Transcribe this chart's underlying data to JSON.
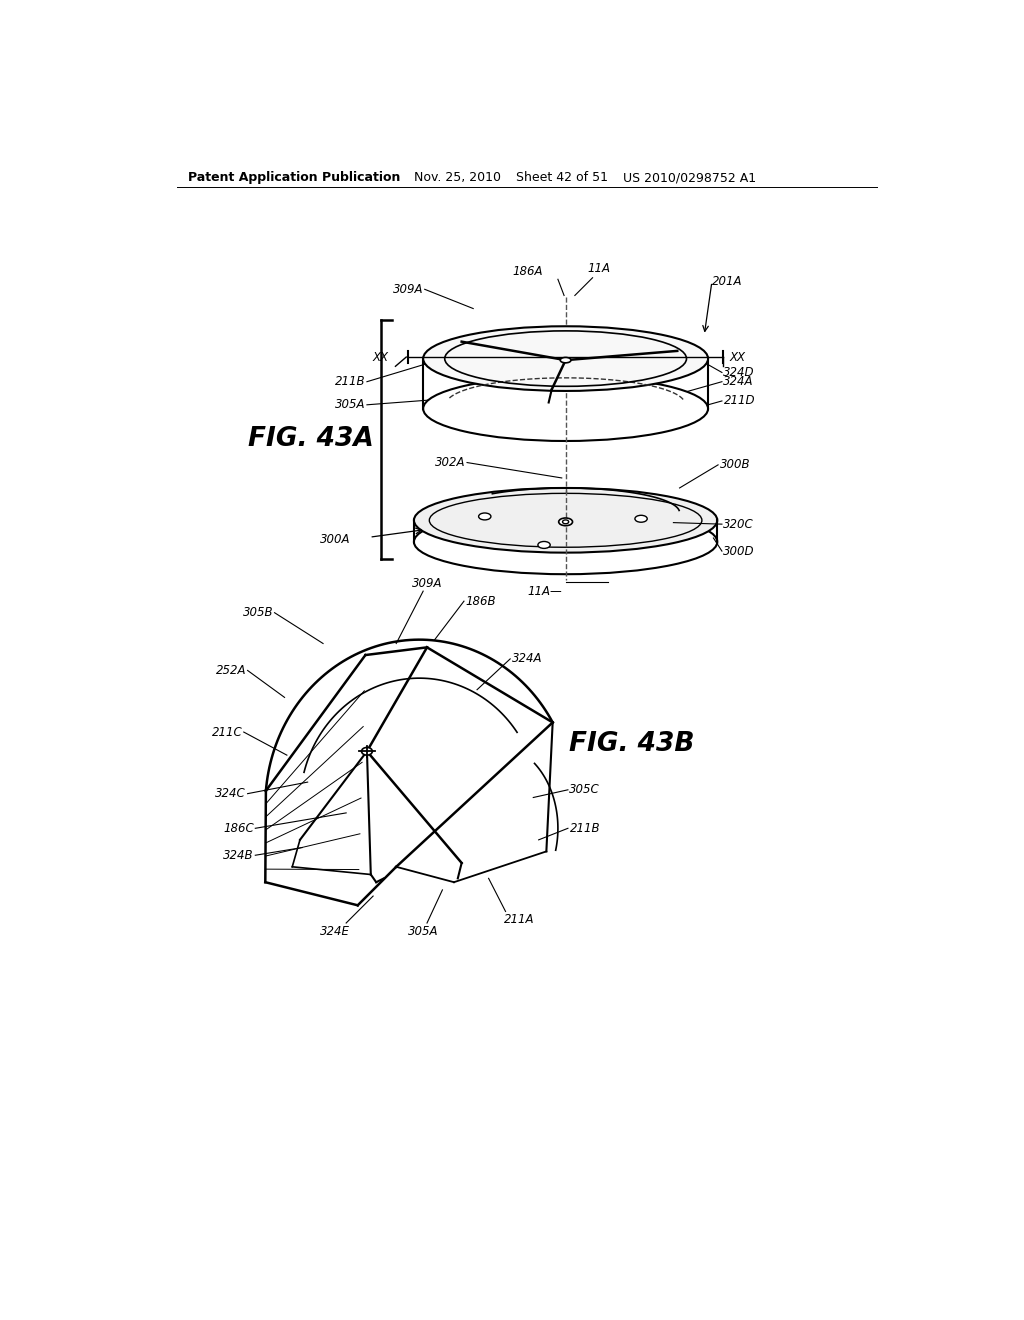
{
  "background_color": "#ffffff",
  "header_text": "Patent Application Publication",
  "header_date": "Nov. 25, 2010",
  "header_sheet": "Sheet 42 of 51",
  "header_patent": "US 2010/0298752 A1",
  "fig43a_label": "FIG. 43A",
  "fig43b_label": "FIG. 43B",
  "line_color": "#000000",
  "text_color": "#000000"
}
